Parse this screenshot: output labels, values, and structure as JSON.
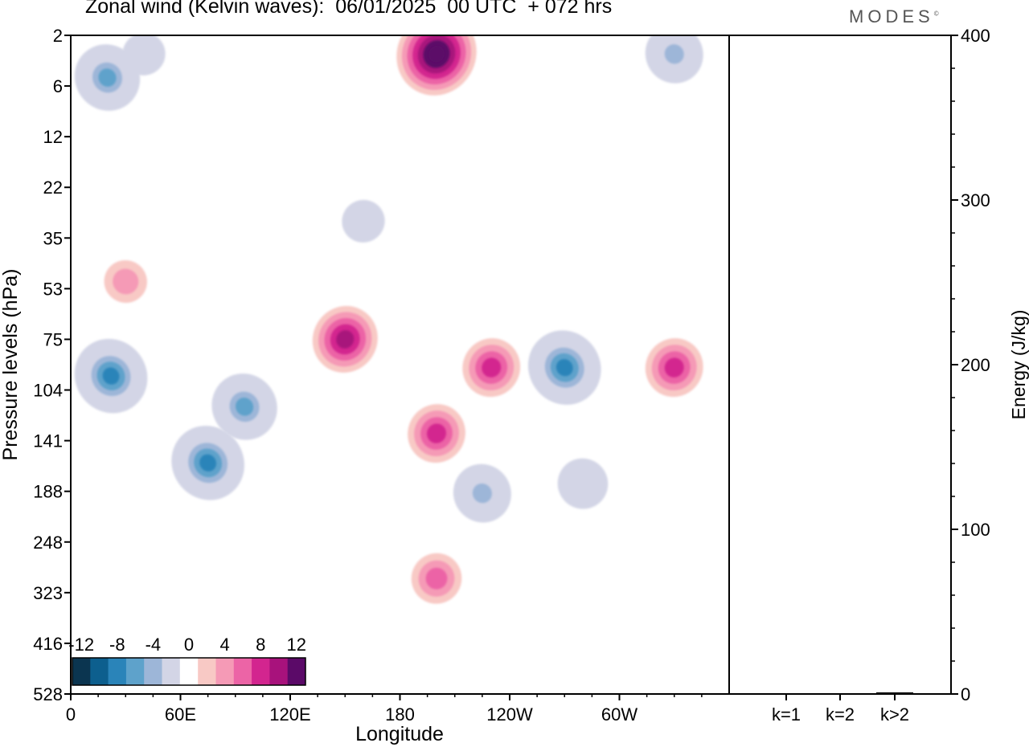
{
  "header": {
    "title": "Zonal wind (Kelvin waves):  06/01/2025  00 UTC  + 072 hrs",
    "brand": "MODES"
  },
  "chart_data": [
    {
      "type": "heatmap",
      "title": "Zonal wind (Kelvin waves):  06/01/2025  00 UTC  + 072 hrs",
      "xlabel": "Longitude",
      "ylabel": "Pressure levels (hPa)",
      "x_ticks": [
        "0",
        "60E",
        "120E",
        "180",
        "120W",
        "60W"
      ],
      "x_tick_values": [
        0,
        60,
        120,
        180,
        240,
        300
      ],
      "xlim": [
        0,
        360
      ],
      "y_ticks": [
        "2",
        "6",
        "12",
        "22",
        "35",
        "53",
        "75",
        "104",
        "141",
        "188",
        "248",
        "323",
        "416",
        "528"
      ],
      "y_axis_inverted": true,
      "grid": false,
      "colorbar": {
        "tick_labels": [
          "-12",
          "-8",
          "-4",
          "0",
          "4",
          "8",
          "12"
        ],
        "levels": [
          -16,
          -14,
          -12,
          -10,
          -8,
          -6,
          -4,
          -2,
          2,
          4,
          6,
          8,
          10,
          12,
          14
        ],
        "colors": [
          "#0b3550",
          "#0d5f8e",
          "#2a84b9",
          "#5ea2cb",
          "#9db6d8",
          "#d3d5e6",
          "#ffffff",
          "#f8c9c5",
          "#f59ab6",
          "#ec64a6",
          "#d3258f",
          "#a8127c",
          "#5b0a68"
        ]
      },
      "features": [
        {
          "name": "neg",
          "center": [
            20,
            5
          ],
          "value": -10
        },
        {
          "name": "neg",
          "center": [
            40,
            3
          ],
          "value": -4
        },
        {
          "name": "neg",
          "center": [
            330,
            3
          ],
          "value": -8
        },
        {
          "name": "neg",
          "center": [
            22,
            95
          ],
          "value": -12
        },
        {
          "name": "neg",
          "center": [
            75,
            160
          ],
          "value": -12
        },
        {
          "name": "neg",
          "center": [
            95,
            115
          ],
          "value": -10
        },
        {
          "name": "neg",
          "center": [
            270,
            90
          ],
          "value": -12
        },
        {
          "name": "neg",
          "center": [
            225,
            190
          ],
          "value": -8
        },
        {
          "name": "neg",
          "center": [
            280,
            180
          ],
          "value": -6
        },
        {
          "name": "neg",
          "center": [
            160,
            30
          ],
          "value": -4
        },
        {
          "name": "pos",
          "center": [
            200,
            3
          ],
          "value": 14
        },
        {
          "name": "pos",
          "center": [
            150,
            75
          ],
          "value": 10
        },
        {
          "name": "pos",
          "center": [
            230,
            90
          ],
          "value": 8
        },
        {
          "name": "pos",
          "center": [
            200,
            135
          ],
          "value": 8
        },
        {
          "name": "pos",
          "center": [
            330,
            90
          ],
          "value": 8
        },
        {
          "name": "pos",
          "center": [
            200,
            300
          ],
          "value": 6
        },
        {
          "name": "pos",
          "center": [
            30,
            50
          ],
          "value": 4
        }
      ]
    },
    {
      "type": "bar",
      "categories": [
        "k=1",
        "k=2",
        "k>2"
      ],
      "values": [
        0.5,
        0.5,
        1.0
      ],
      "ylabel": "Energy (J/kg)",
      "y_ticks": [
        "0",
        "100",
        "200",
        "300",
        "400"
      ],
      "ylim": [
        0,
        400
      ]
    }
  ]
}
